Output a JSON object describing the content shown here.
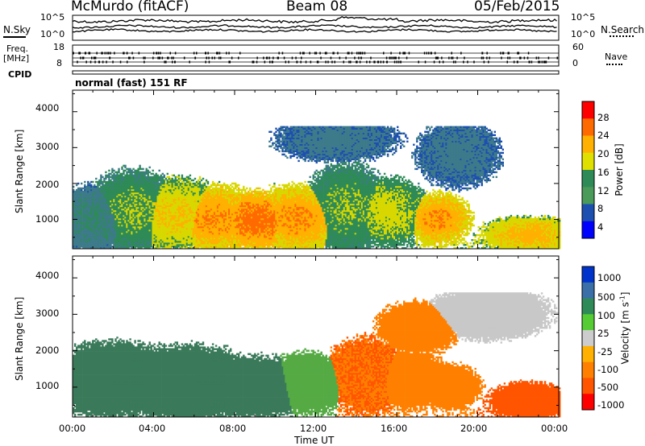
{
  "header": {
    "left": "McMurdo (fitACF)",
    "center": "Beam 08",
    "right": "05/Feb/2015"
  },
  "panel_noise": {
    "left_label": "N.Sky",
    "right_label": "N.Search",
    "left_ticks": [
      "10^5",
      "10^0"
    ],
    "right_ticks": [
      "10^5",
      "10^0"
    ]
  },
  "panel_freq": {
    "left_label_1": "Freq.",
    "left_label_2": "[MHz]",
    "right_label": "Nave",
    "left_ticks": [
      "18",
      "8"
    ],
    "right_ticks": [
      "60",
      "0"
    ]
  },
  "cpid": {
    "label": "CPID",
    "text": "normal (fast) 151 RF"
  },
  "axes": {
    "ylabel": "Slant Range [km]",
    "xlabel": "Time UT",
    "yticks": [
      "4000",
      "3000",
      "2000",
      "1000"
    ],
    "xticks": [
      "00:00",
      "04:00",
      "08:00",
      "12:00",
      "16:00",
      "20:00",
      "00:00"
    ]
  },
  "chart_data": [
    {
      "type": "heatmap",
      "name": "power",
      "ylabel": "Slant Range [km]",
      "xlabel": "Time UT",
      "x_range": [
        "00:00",
        "24:00"
      ],
      "ylim": [
        180,
        4600
      ],
      "colorbar_label": "Power [dB]",
      "colorbar_ticks": [
        "28",
        "24",
        "20",
        "16",
        "12",
        "8",
        "4"
      ],
      "colorbar_colors": [
        "#ff0000",
        "#ff6a00",
        "#ffb000",
        "#e0e000",
        "#2e8b57",
        "#4a9a5a",
        "#1d4fb0",
        "#0000ff"
      ],
      "colorbar_range": [
        0,
        32
      ],
      "blobs": [
        {
          "t": 1.0,
          "r": 1000,
          "pw": 10,
          "tw": 2.2,
          "rh": 900
        },
        {
          "t": 3.0,
          "r": 1200,
          "pw": 14,
          "tw": 2.4,
          "rh": 1100
        },
        {
          "t": 5.0,
          "r": 1100,
          "pw": 18,
          "tw": 2.6,
          "rh": 1000
        },
        {
          "t": 7.0,
          "r": 1000,
          "pw": 22,
          "tw": 2.6,
          "rh": 900
        },
        {
          "t": 9.0,
          "r": 950,
          "pw": 24,
          "tw": 2.4,
          "rh": 800
        },
        {
          "t": 11.0,
          "r": 1000,
          "pw": 22,
          "tw": 2.4,
          "rh": 900
        },
        {
          "t": 13.5,
          "r": 1300,
          "pw": 14,
          "tw": 2.0,
          "rh": 1200
        },
        {
          "t": 15.5,
          "r": 1200,
          "pw": 16,
          "tw": 2.0,
          "rh": 900
        },
        {
          "t": 18.0,
          "r": 1000,
          "pw": 22,
          "tw": 1.6,
          "rh": 700
        },
        {
          "t": 19.0,
          "r": 2800,
          "pw": 8,
          "tw": 2.0,
          "rh": 900
        },
        {
          "t": 22.5,
          "r": 550,
          "pw": 20,
          "tw": 2.4,
          "rh": 500
        },
        {
          "t": 13.0,
          "r": 3200,
          "pw": 8,
          "tw": 3.0,
          "rh": 600
        }
      ]
    },
    {
      "type": "heatmap",
      "name": "velocity",
      "ylabel": "Slant Range [km]",
      "xlabel": "Time UT",
      "x_range": [
        "00:00",
        "24:00"
      ],
      "ylim": [
        180,
        4600
      ],
      "colorbar_label": "Velocity [m s",
      "colorbar_label_sup": "-1",
      "colorbar_label_end": "]",
      "colorbar_ticks": [
        "1000",
        "500",
        "100",
        "25",
        "-25",
        "-100",
        "-500",
        "-1000"
      ],
      "colorbar_colors": [
        "#0033cc",
        "#3a6fa8",
        "#2e8b57",
        "#55cc33",
        "#cccccc",
        "#ffb000",
        "#ff8000",
        "#ff5500",
        "#ff0000"
      ],
      "colorbar_range": [
        -1000,
        1000
      ],
      "blobs": [
        {
          "t": 2.0,
          "r": 1200,
          "v": 300,
          "tw": 3.0,
          "rh": 1000
        },
        {
          "t": 5.5,
          "r": 1100,
          "v": 350,
          "tw": 3.5,
          "rh": 1000
        },
        {
          "t": 9.0,
          "r": 1000,
          "v": 300,
          "tw": 3.0,
          "rh": 800
        },
        {
          "t": 11.5,
          "r": 1100,
          "v": 200,
          "tw": 2.0,
          "rh": 800
        },
        {
          "t": 14.5,
          "r": 1300,
          "v": -400,
          "tw": 2.0,
          "rh": 1000
        },
        {
          "t": 16.5,
          "r": 1200,
          "v": -350,
          "tw": 2.0,
          "rh": 800
        },
        {
          "t": 18.5,
          "r": 1000,
          "v": -300,
          "tw": 1.6,
          "rh": 600
        },
        {
          "t": 22.5,
          "r": 600,
          "v": -500,
          "tw": 2.0,
          "rh": 500
        },
        {
          "t": 20.5,
          "r": 3000,
          "v": 0,
          "tw": 3.0,
          "rh": 700
        },
        {
          "t": 17.0,
          "r": 2600,
          "v": -200,
          "tw": 2.0,
          "rh": 700
        }
      ]
    }
  ]
}
